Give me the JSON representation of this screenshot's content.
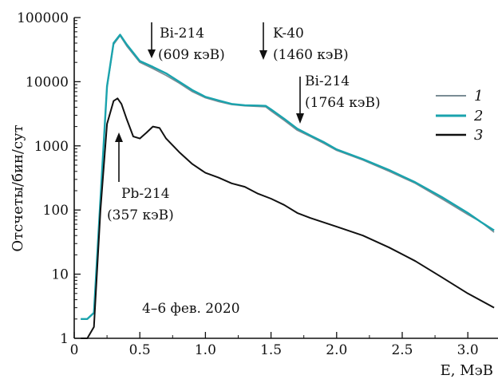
{
  "chart_data": {
    "type": "line",
    "title": "",
    "xlabel": "E, МэВ",
    "ylabel": "Отсчеты/бин/сут",
    "xlim": [
      0,
      3.23
    ],
    "ylim": [
      1,
      100000
    ],
    "yscale": "log",
    "grid": false,
    "legend_position": "right",
    "x_ticks": [
      0,
      0.5,
      1.0,
      1.5,
      2.0,
      2.5,
      3.0
    ],
    "x_tick_labels": [
      "0",
      "0.5",
      "1.0",
      "1.5",
      "2.0",
      "2.5",
      "3.0"
    ],
    "y_ticks": [
      1,
      10,
      100,
      1000,
      10000,
      100000
    ],
    "y_tick_labels": [
      "1",
      "10",
      "100",
      "1000",
      "10000",
      "100000"
    ],
    "series": [
      {
        "name": "1",
        "color": "#7a8c94",
        "x": [
          0.05,
          0.1,
          0.15,
          0.2,
          0.25,
          0.3,
          0.35,
          0.4,
          0.5,
          0.6,
          0.7,
          0.8,
          0.9,
          1.0,
          1.1,
          1.2,
          1.3,
          1.4,
          1.46,
          1.5,
          1.6,
          1.7,
          1.8,
          1.9,
          2.0,
          2.2,
          2.4,
          2.6,
          2.8,
          3.0,
          3.1,
          3.2
        ],
        "values": [
          2,
          2,
          2.5,
          150,
          8000,
          38000,
          52000,
          36000,
          20000,
          16000,
          12500,
          9500,
          7000,
          5600,
          4900,
          4400,
          4200,
          4100,
          4050,
          3500,
          2500,
          1750,
          1400,
          1100,
          850,
          600,
          400,
          260,
          150,
          85,
          65,
          45
        ]
      },
      {
        "name": "2",
        "color": "#1aa3ad",
        "x": [
          0.05,
          0.1,
          0.15,
          0.2,
          0.25,
          0.3,
          0.35,
          0.4,
          0.5,
          0.6,
          0.7,
          0.8,
          0.9,
          1.0,
          1.1,
          1.2,
          1.3,
          1.4,
          1.46,
          1.5,
          1.6,
          1.7,
          1.8,
          1.9,
          2.0,
          2.2,
          2.4,
          2.6,
          2.8,
          3.0,
          3.1,
          3.2
        ],
        "values": [
          2,
          2,
          2.5,
          150,
          8500,
          40000,
          54000,
          38000,
          21000,
          17000,
          13500,
          10000,
          7400,
          5800,
          5100,
          4500,
          4300,
          4250,
          4200,
          3700,
          2650,
          1850,
          1450,
          1150,
          880,
          620,
          420,
          270,
          160,
          90,
          65,
          48
        ]
      },
      {
        "name": "3",
        "color": "#111111",
        "x": [
          0.05,
          0.1,
          0.15,
          0.2,
          0.25,
          0.3,
          0.33,
          0.36,
          0.4,
          0.45,
          0.5,
          0.55,
          0.6,
          0.65,
          0.7,
          0.8,
          0.9,
          1.0,
          1.1,
          1.2,
          1.3,
          1.4,
          1.5,
          1.6,
          1.7,
          1.8,
          2.0,
          2.2,
          2.4,
          2.6,
          2.8,
          3.0,
          3.2
        ],
        "values": [
          1,
          1,
          1.5,
          100,
          2200,
          5000,
          5500,
          4500,
          2600,
          1400,
          1300,
          1600,
          2000,
          1900,
          1300,
          800,
          520,
          380,
          320,
          260,
          230,
          180,
          150,
          120,
          90,
          75,
          55,
          40,
          26,
          16,
          9,
          5,
          3
        ]
      }
    ],
    "annotations": [
      {
        "label": "Bi-214",
        "sublabel": "(609 кэВ)",
        "x": 0.609
      },
      {
        "label": "K-40",
        "sublabel": "(1460 кэВ)",
        "x": 1.46
      },
      {
        "label": "Bi-214",
        "sublabel": "(1764 кэВ)",
        "x": 1.764
      },
      {
        "label": "Pb-214",
        "sublabel": "(357 кэВ)",
        "x": 0.357
      }
    ],
    "note": "4–6 фев. 2020"
  }
}
